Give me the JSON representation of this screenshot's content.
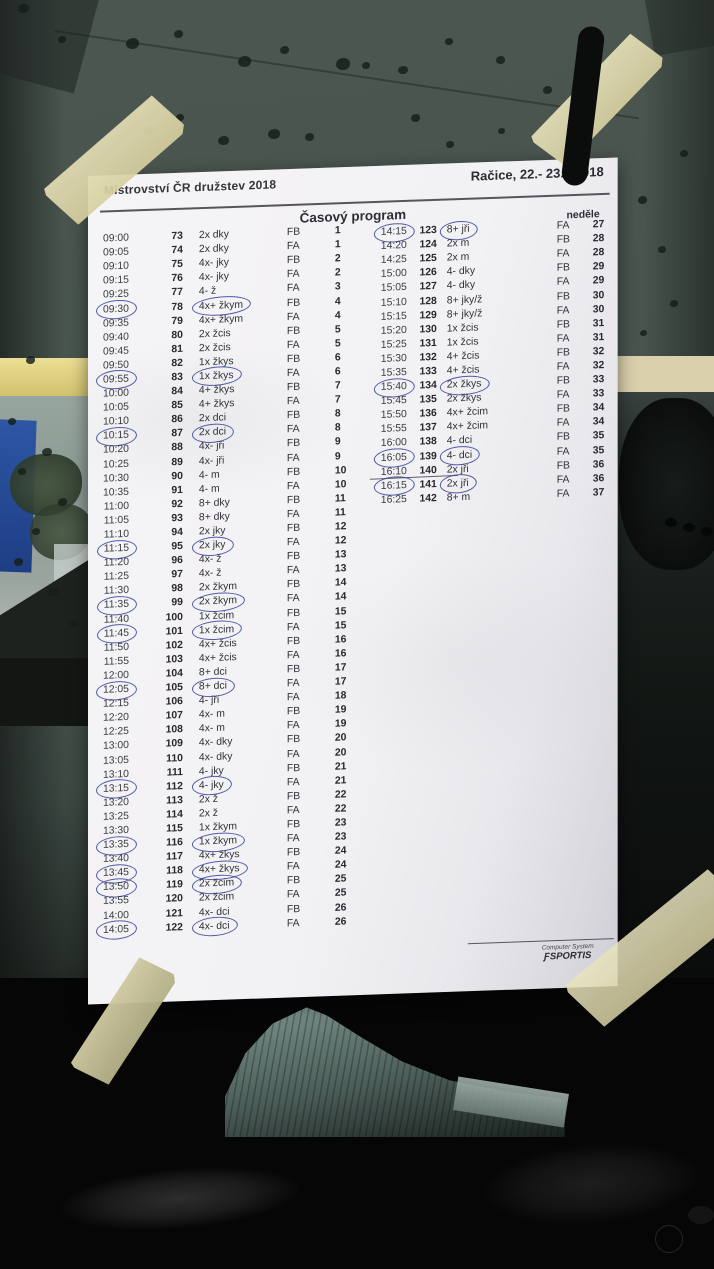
{
  "header": {
    "title_left": "Mistrovství ČR družstev 2018",
    "title_right": "Račice,  22.- 23.9.2018",
    "program_title": "Časový program",
    "day_label": "neděle"
  },
  "footer": {
    "line1": "Computer System",
    "logo_glyph": "Ƒ",
    "brand": "SPORTIS"
  },
  "colors": {
    "pen_blue": "#333f9b",
    "tape_beige": "#e0d9ae",
    "paper_white": "#f2f1f4",
    "window_gray": "#49554f"
  },
  "schedule": {
    "columns": [
      "time",
      "race_number",
      "boat_class",
      "phase",
      "heat_number"
    ],
    "left_rows": [
      {
        "time": "09:00",
        "no": "73",
        "cls": "2x dky",
        "phase": "FB",
        "heat": "1",
        "circled": false
      },
      {
        "time": "09:05",
        "no": "74",
        "cls": "2x dky",
        "phase": "FA",
        "heat": "1",
        "circled": false
      },
      {
        "time": "09:10",
        "no": "75",
        "cls": "4x- jky",
        "phase": "FB",
        "heat": "2",
        "circled": false
      },
      {
        "time": "09:15",
        "no": "76",
        "cls": "4x- jky",
        "phase": "FA",
        "heat": "2",
        "circled": false
      },
      {
        "time": "09:25",
        "no": "77",
        "cls": "4- ž",
        "phase": "FA",
        "heat": "3",
        "circled": false
      },
      {
        "time": "09:30",
        "no": "78",
        "cls": "4x+ žkym",
        "phase": "FB",
        "heat": "4",
        "circled": true
      },
      {
        "time": "09:35",
        "no": "79",
        "cls": "4x+ žkym",
        "phase": "FA",
        "heat": "4",
        "circled": false
      },
      {
        "time": "09:40",
        "no": "80",
        "cls": "2x žcis",
        "phase": "FB",
        "heat": "5",
        "circled": false
      },
      {
        "time": "09:45",
        "no": "81",
        "cls": "2x žcis",
        "phase": "FA",
        "heat": "5",
        "circled": false
      },
      {
        "time": "09:50",
        "no": "82",
        "cls": "1x žkys",
        "phase": "FB",
        "heat": "6",
        "circled": false
      },
      {
        "time": "09:55",
        "no": "83",
        "cls": "1x žkys",
        "phase": "FA",
        "heat": "6",
        "circled": true
      },
      {
        "time": "10:00",
        "no": "84",
        "cls": "4+ žkys",
        "phase": "FB",
        "heat": "7",
        "circled": false
      },
      {
        "time": "10:05",
        "no": "85",
        "cls": "4+ žkys",
        "phase": "FA",
        "heat": "7",
        "circled": false
      },
      {
        "time": "10:10",
        "no": "86",
        "cls": "2x dci",
        "phase": "FB",
        "heat": "8",
        "circled": false
      },
      {
        "time": "10:15",
        "no": "87",
        "cls": "2x dci",
        "phase": "FA",
        "heat": "8",
        "circled": true
      },
      {
        "time": "10:20",
        "no": "88",
        "cls": "4x- jři",
        "phase": "FB",
        "heat": "9",
        "circled": false
      },
      {
        "time": "10:25",
        "no": "89",
        "cls": "4x- jři",
        "phase": "FA",
        "heat": "9",
        "circled": false
      },
      {
        "time": "10:30",
        "no": "90",
        "cls": "4- m",
        "phase": "FB",
        "heat": "10",
        "circled": false
      },
      {
        "time": "10:35",
        "no": "91",
        "cls": "4- m",
        "phase": "FA",
        "heat": "10",
        "circled": false
      },
      {
        "time": "11:00",
        "no": "92",
        "cls": "8+ dky",
        "phase": "FB",
        "heat": "11",
        "circled": false
      },
      {
        "time": "11:05",
        "no": "93",
        "cls": "8+ dky",
        "phase": "FA",
        "heat": "11",
        "circled": false
      },
      {
        "time": "11:10",
        "no": "94",
        "cls": "2x jky",
        "phase": "FB",
        "heat": "12",
        "circled": false
      },
      {
        "time": "11:15",
        "no": "95",
        "cls": "2x jky",
        "phase": "FA",
        "heat": "12",
        "circled": true
      },
      {
        "time": "11:20",
        "no": "96",
        "cls": "4x- ž",
        "phase": "FB",
        "heat": "13",
        "circled": false
      },
      {
        "time": "11:25",
        "no": "97",
        "cls": "4x- ž",
        "phase": "FA",
        "heat": "13",
        "circled": false
      },
      {
        "time": "11:30",
        "no": "98",
        "cls": "2x žkym",
        "phase": "FB",
        "heat": "14",
        "circled": false
      },
      {
        "time": "11:35",
        "no": "99",
        "cls": "2x žkym",
        "phase": "FA",
        "heat": "14",
        "circled": true
      },
      {
        "time": "11:40",
        "no": "100",
        "cls": "1x žcim",
        "phase": "FB",
        "heat": "15",
        "circled": false
      },
      {
        "time": "11:45",
        "no": "101",
        "cls": "1x žcim",
        "phase": "FA",
        "heat": "15",
        "circled": true
      },
      {
        "time": "11:50",
        "no": "102",
        "cls": "4x+ žcis",
        "phase": "FB",
        "heat": "16",
        "circled": false
      },
      {
        "time": "11:55",
        "no": "103",
        "cls": "4x+ žcis",
        "phase": "FA",
        "heat": "16",
        "circled": false
      },
      {
        "time": "12:00",
        "no": "104",
        "cls": "8+ dci",
        "phase": "FB",
        "heat": "17",
        "circled": false
      },
      {
        "time": "12:05",
        "no": "105",
        "cls": "8+ dci",
        "phase": "FA",
        "heat": "17",
        "circled": true
      },
      {
        "time": "12:15",
        "no": "106",
        "cls": "4- jři",
        "phase": "FA",
        "heat": "18",
        "circled": false
      },
      {
        "time": "12:20",
        "no": "107",
        "cls": "4x- m",
        "phase": "FB",
        "heat": "19",
        "circled": false
      },
      {
        "time": "12:25",
        "no": "108",
        "cls": "4x- m",
        "phase": "FA",
        "heat": "19",
        "circled": false
      },
      {
        "time": "13:00",
        "no": "109",
        "cls": "4x- dky",
        "phase": "FB",
        "heat": "20",
        "circled": false
      },
      {
        "time": "13:05",
        "no": "110",
        "cls": "4x- dky",
        "phase": "FA",
        "heat": "20",
        "circled": false
      },
      {
        "time": "13:10",
        "no": "111",
        "cls": "4- jky",
        "phase": "FB",
        "heat": "21",
        "circled": false
      },
      {
        "time": "13:15",
        "no": "112",
        "cls": "4- jky",
        "phase": "FA",
        "heat": "21",
        "circled": true
      },
      {
        "time": "13:20",
        "no": "113",
        "cls": "2x ž",
        "phase": "FB",
        "heat": "22",
        "circled": false
      },
      {
        "time": "13:25",
        "no": "114",
        "cls": "2x ž",
        "phase": "FA",
        "heat": "22",
        "circled": false
      },
      {
        "time": "13:30",
        "no": "115",
        "cls": "1x žkym",
        "phase": "FB",
        "heat": "23",
        "circled": false
      },
      {
        "time": "13:35",
        "no": "116",
        "cls": "1x žkym",
        "phase": "FA",
        "heat": "23",
        "circled": true
      },
      {
        "time": "13:40",
        "no": "117",
        "cls": "4x+ žkys",
        "phase": "FB",
        "heat": "24",
        "circled": false
      },
      {
        "time": "13:45",
        "no": "118",
        "cls": "4x+ žkys",
        "phase": "FA",
        "heat": "24",
        "circled": true
      },
      {
        "time": "13:50",
        "no": "119",
        "cls": "2x žcim",
        "phase": "FB",
        "heat": "25",
        "circled": true
      },
      {
        "time": "13:55",
        "no": "120",
        "cls": "2x žcim",
        "phase": "FA",
        "heat": "25",
        "circled": false
      },
      {
        "time": "14:00",
        "no": "121",
        "cls": "4x- dci",
        "phase": "FB",
        "heat": "26",
        "circled": false
      },
      {
        "time": "14:05",
        "no": "122",
        "cls": "4x- dci",
        "phase": "FA",
        "heat": "26",
        "circled": true
      }
    ],
    "right_rows": [
      {
        "time": "14:15",
        "no": "123",
        "cls": "8+ jři",
        "phase": "FA",
        "heat": "27",
        "circled": true
      },
      {
        "time": "14:20",
        "no": "124",
        "cls": "2x m",
        "phase": "FB",
        "heat": "28",
        "circled": false
      },
      {
        "time": "14:25",
        "no": "125",
        "cls": "2x m",
        "phase": "FA",
        "heat": "28",
        "circled": false
      },
      {
        "time": "15:00",
        "no": "126",
        "cls": "4- dky",
        "phase": "FB",
        "heat": "29",
        "circled": false
      },
      {
        "time": "15:05",
        "no": "127",
        "cls": "4- dky",
        "phase": "FA",
        "heat": "29",
        "circled": false
      },
      {
        "time": "15:10",
        "no": "128",
        "cls": "8+ jky/ž",
        "phase": "FB",
        "heat": "30",
        "circled": false
      },
      {
        "time": "15:15",
        "no": "129",
        "cls": "8+ jky/ž",
        "phase": "FA",
        "heat": "30",
        "circled": false
      },
      {
        "time": "15:20",
        "no": "130",
        "cls": "1x žcis",
        "phase": "FB",
        "heat": "31",
        "circled": false
      },
      {
        "time": "15:25",
        "no": "131",
        "cls": "1x žcis",
        "phase": "FA",
        "heat": "31",
        "circled": false
      },
      {
        "time": "15:30",
        "no": "132",
        "cls": "4+ žcis",
        "phase": "FB",
        "heat": "32",
        "circled": false
      },
      {
        "time": "15:35",
        "no": "133",
        "cls": "4+ žcis",
        "phase": "FA",
        "heat": "32",
        "circled": false
      },
      {
        "time": "15:40",
        "no": "134",
        "cls": "2x žkys",
        "phase": "FB",
        "heat": "33",
        "circled": true
      },
      {
        "time": "15:45",
        "no": "135",
        "cls": "2x žkys",
        "phase": "FA",
        "heat": "33",
        "circled": false
      },
      {
        "time": "15:50",
        "no": "136",
        "cls": "4x+ žcim",
        "phase": "FB",
        "heat": "34",
        "circled": false
      },
      {
        "time": "15:55",
        "no": "137",
        "cls": "4x+ žcim",
        "phase": "FA",
        "heat": "34",
        "circled": false
      },
      {
        "time": "16:00",
        "no": "138",
        "cls": "4- dci",
        "phase": "FB",
        "heat": "35",
        "circled": false
      },
      {
        "time": "16:05",
        "no": "139",
        "cls": "4- dci",
        "phase": "FA",
        "heat": "35",
        "circled": true
      },
      {
        "time": "16:10",
        "no": "140",
        "cls": "2x jři",
        "phase": "FB",
        "heat": "36",
        "circled": false
      },
      {
        "time": "16:15",
        "no": "141",
        "cls": "2x jři",
        "phase": "FA",
        "heat": "36",
        "circled": true
      },
      {
        "time": "16:25",
        "no": "142",
        "cls": "8+ m",
        "phase": "FA",
        "heat": "37",
        "circled": false
      }
    ]
  }
}
